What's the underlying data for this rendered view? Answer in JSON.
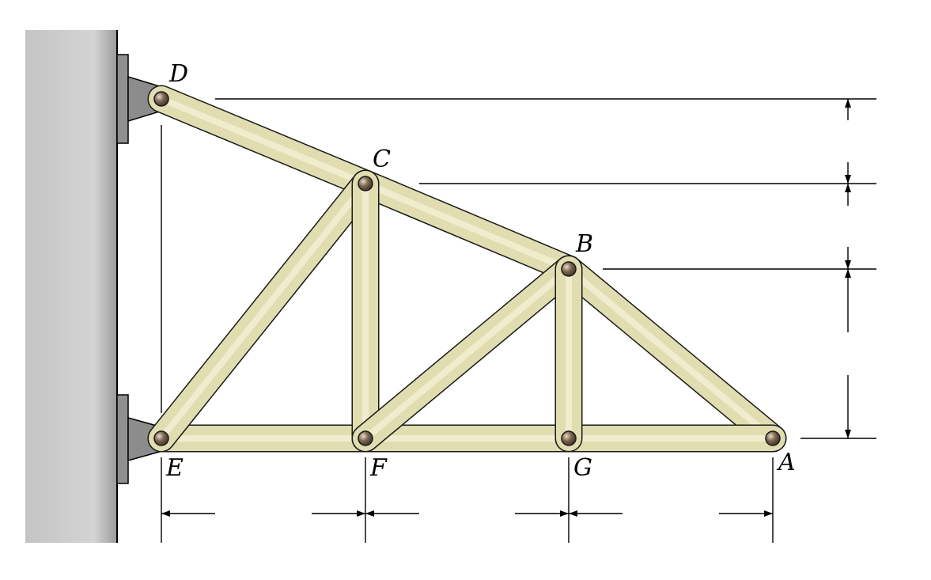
{
  "diagram": {
    "title": "",
    "nodes": [
      {
        "id": "D",
        "label": "D"
      },
      {
        "id": "C",
        "label": "C"
      },
      {
        "id": "B",
        "label": "B"
      },
      {
        "id": "A",
        "label": "A"
      },
      {
        "id": "E",
        "label": "E"
      },
      {
        "id": "F",
        "label": "F"
      },
      {
        "id": "G",
        "label": "G"
      }
    ],
    "members": [
      [
        "D",
        "C"
      ],
      [
        "C",
        "B"
      ],
      [
        "B",
        "A"
      ],
      [
        "E",
        "F"
      ],
      [
        "F",
        "G"
      ],
      [
        "G",
        "A"
      ],
      [
        "E",
        "C"
      ],
      [
        "C",
        "F"
      ],
      [
        "F",
        "B"
      ],
      [
        "B",
        "G"
      ]
    ],
    "supports": [
      "D",
      "E"
    ],
    "colors": {
      "member_fill": "#e0ddb0",
      "member_stroke": "#1a1a1a",
      "pin": "#6b5a45",
      "wall": "#c8c8c8",
      "bracket": "#909090"
    }
  }
}
